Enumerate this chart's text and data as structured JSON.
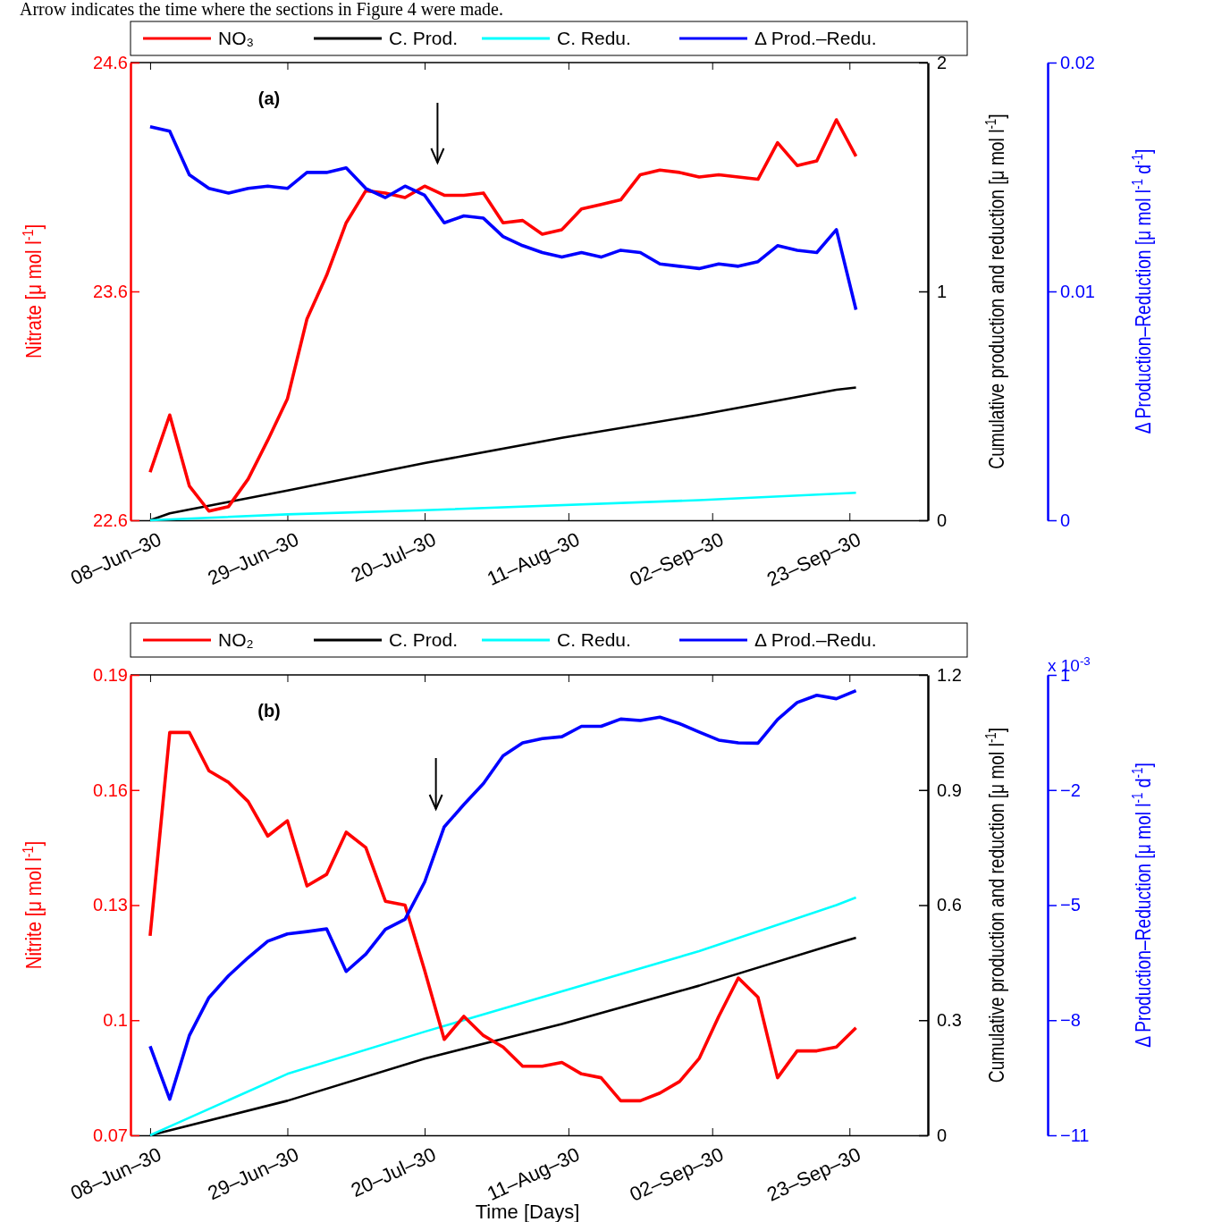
{
  "chart_data": [
    {
      "type": "line",
      "subtitle": "Arrow indicates the time where the sections in Figure 4 were made.",
      "title": "(a)",
      "ylabel": "Nitrate [μ mol l$^{-1}$]",
      "y2label": "Cumulative production and reduction [μ mol l$^{-1}$]",
      "y3label": "Δ Production–Reduction [μ mol l$^{-1}$ d$^{-1}$]",
      "x": [
        "1930-06-08",
        "1930-06-11",
        "1930-06-14",
        "1930-06-17",
        "1930-06-20",
        "1930-06-23",
        "1930-06-26",
        "1930-06-29",
        "1930-07-02",
        "1930-07-05",
        "1930-07-08",
        "1930-07-11",
        "1930-07-14",
        "1930-07-17",
        "1930-07-20",
        "1930-07-23",
        "1930-07-26",
        "1930-07-29",
        "1930-08-01",
        "1930-08-04",
        "1930-08-07",
        "1930-08-10",
        "1930-08-13",
        "1930-08-16",
        "1930-08-19",
        "1930-08-22",
        "1930-08-25",
        "1930-08-28",
        "1930-08-31",
        "1930-09-03",
        "1930-09-06",
        "1930-09-09",
        "1930-09-12",
        "1930-09-15",
        "1930-09-18",
        "1930-09-21",
        "1930-09-24"
      ],
      "series": [
        {
          "name": "NO₃",
          "color": "#ff0000",
          "values": [
            22.81,
            23.06,
            22.75,
            22.64,
            22.66,
            22.78,
            22.95,
            23.13,
            23.48,
            23.67,
            23.9,
            24.04,
            24.03,
            24.01,
            24.06,
            24.02,
            24.02,
            24.03,
            23.9,
            23.91,
            23.85,
            23.87,
            23.96,
            23.98,
            24.0,
            24.11,
            24.13,
            24.12,
            24.1,
            24.11,
            24.1,
            24.09,
            24.25,
            24.15,
            24.17,
            24.35,
            24.19
          ]
        },
        {
          "name": "C. Prod.",
          "color": "#000000",
          "axis": "y2",
          "x": [
            "1930-06-08",
            "1930-06-11",
            "1930-06-20",
            "1930-06-29",
            "1930-07-20",
            "1930-08-10",
            "1930-08-31",
            "1930-09-21",
            "1930-09-24"
          ],
          "values": [
            0,
            0.03,
            0.08,
            0.13,
            0.25,
            0.36,
            0.46,
            0.57,
            0.58
          ]
        },
        {
          "name": "C. Redu.",
          "color": "#00ffff",
          "axis": "y2",
          "x": [
            "1930-06-08",
            "1930-06-29",
            "1930-07-20",
            "1930-08-31",
            "1930-09-24"
          ],
          "values": [
            0,
            0.026,
            0.044,
            0.088,
            0.12
          ]
        },
        {
          "name": "Δ Prod.–Redu.",
          "color": "#0000ff",
          "axis": "y3",
          "values": [
            0.0172,
            0.017,
            0.0151,
            0.0145,
            0.0143,
            0.0145,
            0.0146,
            0.0145,
            0.0152,
            0.0152,
            0.0154,
            0.0145,
            0.0141,
            0.0146,
            0.0142,
            0.013,
            0.0133,
            0.0132,
            0.0124,
            0.012,
            0.0117,
            0.0115,
            0.0117,
            0.0115,
            0.0118,
            0.0117,
            0.0112,
            0.0111,
            0.011,
            0.0112,
            0.0111,
            0.0113,
            0.012,
            0.0118,
            0.0117,
            0.0127,
            0.0092
          ]
        }
      ],
      "xlim": [
        "1930-06-05",
        "1930-10-05"
      ],
      "xticks": [
        {
          "value": "1930-06-08",
          "label": "08–Jun–30"
        },
        {
          "value": "1930-06-29",
          "label": "29–Jun–30"
        },
        {
          "value": "1930-07-20",
          "label": "20–Jul–30"
        },
        {
          "value": "1930-08-11",
          "label": "11–Aug–30"
        },
        {
          "value": "1930-09-02",
          "label": "02–Sep–30"
        },
        {
          "value": "1930-09-23",
          "label": "23–Sep–30"
        }
      ],
      "ylim": [
        22.6,
        24.6
      ],
      "yticks": [
        22.6,
        23.6,
        24.6
      ],
      "y2lim": [
        0,
        2
      ],
      "y2ticks": [
        0,
        1,
        2
      ],
      "y3lim": [
        0,
        0.02
      ],
      "y3ticks": [
        0,
        0.01,
        0.02
      ],
      "legend": "top",
      "line_style": "solid"
    },
    {
      "type": "line",
      "title": "(b)",
      "xlabel": "Time [Days]",
      "ylabel": "Nitrite [μ mol l$^{-1}$]",
      "y2label": "Cumulative production and reduction [μ mol l$^{-1}$]",
      "y3label": "Δ Production–Reduction [μ mol l$^{-1}$ d$^{-1}$]",
      "annotations": [
        "x 10$^{-3}$"
      ],
      "x": [
        "1930-06-08",
        "1930-06-11",
        "1930-06-14",
        "1930-06-17",
        "1930-06-20",
        "1930-06-23",
        "1930-06-26",
        "1930-06-29",
        "1930-07-02",
        "1930-07-05",
        "1930-07-08",
        "1930-07-11",
        "1930-07-14",
        "1930-07-17",
        "1930-07-20",
        "1930-07-23",
        "1930-07-26",
        "1930-07-29",
        "1930-08-01",
        "1930-08-04",
        "1930-08-07",
        "1930-08-10",
        "1930-08-13",
        "1930-08-16",
        "1930-08-19",
        "1930-08-22",
        "1930-08-25",
        "1930-08-28",
        "1930-08-31",
        "1930-09-03",
        "1930-09-06",
        "1930-09-09",
        "1930-09-12",
        "1930-09-15",
        "1930-09-18",
        "1930-09-21",
        "1930-09-24"
      ],
      "series": [
        {
          "name": "NO₂",
          "color": "#ff0000",
          "values": [
            0.122,
            0.175,
            0.175,
            0.165,
            0.162,
            0.157,
            0.148,
            0.152,
            0.135,
            0.138,
            0.149,
            0.145,
            0.131,
            0.13,
            0.113,
            0.095,
            0.101,
            0.096,
            0.093,
            0.088,
            0.088,
            0.089,
            0.086,
            0.085,
            0.079,
            0.079,
            0.081,
            0.084,
            0.09,
            0.101,
            0.111,
            0.106,
            0.085,
            0.092,
            0.092,
            0.093,
            0.098
          ]
        },
        {
          "name": "C. Prod.",
          "color": "#000000",
          "axis": "y2",
          "x": [
            "1930-06-08",
            "1930-06-29",
            "1930-07-20",
            "1930-08-10",
            "1930-08-31",
            "1930-09-21",
            "1930-09-24"
          ],
          "values": [
            0,
            0.09,
            0.2,
            0.29,
            0.39,
            0.5,
            0.515
          ]
        },
        {
          "name": "C. Redu.",
          "color": "#00ffff",
          "axis": "y2",
          "x": [
            "1930-06-08",
            "1930-06-11",
            "1930-06-29",
            "1930-07-20",
            "1930-08-10",
            "1930-08-31",
            "1930-09-21",
            "1930-09-24"
          ],
          "values": [
            0,
            0.023,
            0.16,
            0.27,
            0.375,
            0.48,
            0.6,
            0.62
          ]
        },
        {
          "name": "Δ Prod.–Redu.",
          "color": "#0000ff",
          "axis": "y3",
          "values": [
            -8.68,
            -10.06,
            -8.4,
            -7.41,
            -6.84,
            -6.37,
            -5.94,
            -5.75,
            -5.69,
            -5.62,
            -6.73,
            -6.28,
            -5.63,
            -5.37,
            -4.4,
            -2.96,
            -2.38,
            -1.83,
            -1.11,
            -0.77,
            -0.66,
            -0.61,
            -0.34,
            -0.34,
            -0.15,
            -0.19,
            -0.1,
            -0.27,
            -0.49,
            -0.7,
            -0.77,
            -0.78,
            -0.16,
            0.28,
            0.47,
            0.38,
            0.59
          ]
        }
      ],
      "xlim": [
        "1930-06-05",
        "1930-10-05"
      ],
      "xticks": [
        {
          "value": "1930-06-08",
          "label": "08–Jun–30"
        },
        {
          "value": "1930-06-29",
          "label": "29–Jun–30"
        },
        {
          "value": "1930-07-20",
          "label": "20–Jul–30"
        },
        {
          "value": "1930-08-11",
          "label": "11–Aug–30"
        },
        {
          "value": "1930-09-02",
          "label": "02–Sep–30"
        },
        {
          "value": "1930-09-23",
          "label": "23–Sep–30"
        }
      ],
      "ylim": [
        0.07,
        0.19
      ],
      "yticks": [
        0.07,
        0.1,
        0.13,
        0.16,
        0.19
      ],
      "y2lim": [
        0,
        1.2
      ],
      "y2ticks": [
        0,
        0.3,
        0.6,
        0.9,
        1.2
      ],
      "y3lim": [
        -11,
        1
      ],
      "y3ticks": [
        -11,
        -8,
        -5,
        -2,
        1
      ],
      "legend": "top",
      "line_style": "solid"
    }
  ]
}
